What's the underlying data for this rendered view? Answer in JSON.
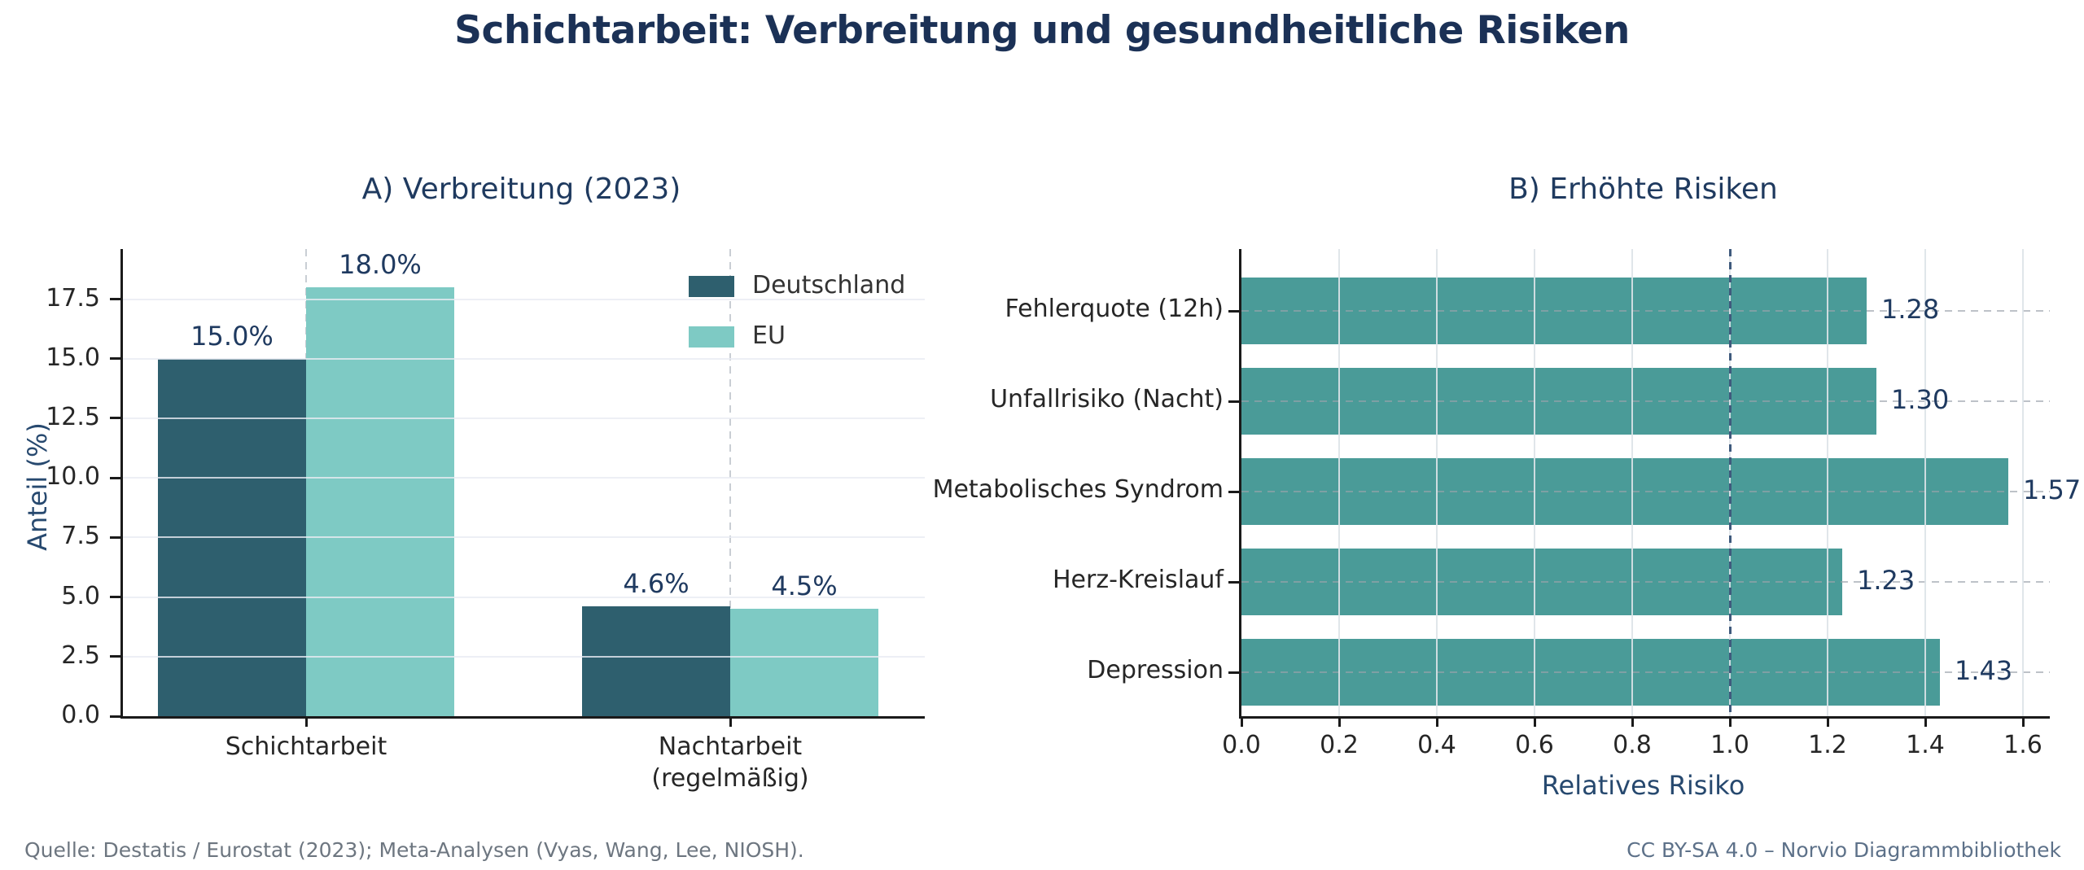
{
  "figure": {
    "title": "Schichtarbeit: Verbreitung und gesundheitliche Risiken"
  },
  "footer": {
    "source": "Quelle: Destatis / Eurostat (2023); Meta-Analysen (Vyas, Wang, Lee, NIOSH).",
    "license": "CC BY-SA 4.0 – Norvio Diagrammbibliothek"
  },
  "chart_data": [
    {
      "type": "bar",
      "title": "A) Verbreitung (2023)",
      "ylabel": "Anteil (%)",
      "categories": [
        "Schichtarbeit",
        "Nachtarbeit\n(regelmäßig)"
      ],
      "series": [
        {
          "name": "Deutschland",
          "color": "#2e5f6e",
          "values": [
            15.0,
            4.6
          ],
          "labels": [
            "15.0%",
            "4.6%"
          ]
        },
        {
          "name": "EU",
          "color": "#7ecac4",
          "values": [
            18.0,
            4.5
          ],
          "labels": [
            "18.0%",
            "4.5%"
          ]
        }
      ],
      "ytick_labels": [
        "0.0",
        "2.5",
        "5.0",
        "7.5",
        "10.0",
        "12.5",
        "15.0",
        "17.5"
      ],
      "ylim": [
        0,
        19.6
      ],
      "grid": "horizontal solid, dashed vertical guides at category centers",
      "legend_position": "upper right, no frame"
    },
    {
      "type": "bar-horizontal",
      "title": "B) Erhöhte Risiken",
      "xlabel": "Relatives Risiko",
      "categories": [
        "Fehlerquote (12h)",
        "Unfallrisiko (Nacht)",
        "Metabolisches Syndrom",
        "Herz-Kreislauf",
        "Depression"
      ],
      "values": [
        1.28,
        1.3,
        1.57,
        1.23,
        1.43
      ],
      "value_labels": [
        "1.28",
        "1.30",
        "1.57",
        "1.23",
        "1.43"
      ],
      "bar_color": "#4a9b98",
      "xtick_labels": [
        "0.0",
        "0.2",
        "0.4",
        "0.6",
        "0.8",
        "1.0",
        "1.2",
        "1.4",
        "1.6"
      ],
      "xlim": [
        0,
        1.655
      ],
      "reference_line": {
        "value": 1.0,
        "color": "#3f5a7d",
        "style": "dashed"
      },
      "grid": "vertical solid, dashed horizontal guides at category centers"
    }
  ],
  "colors": {
    "title": "#1b3156",
    "subtitle": "#1f3a5f",
    "axis_label": "#27496f",
    "value_label": "#1f3a60",
    "tick_label": "#262626",
    "legend_label": "#333333",
    "spine": "#1a1a1a",
    "grid_solid_left": "#e8ebf2",
    "grid_solid_right": "#dde3e8",
    "grid_dashed": "#9aa2aa",
    "category_dashed": "#c9ced4",
    "footer_source": "#6d7680",
    "footer_license": "#5d7189"
  }
}
